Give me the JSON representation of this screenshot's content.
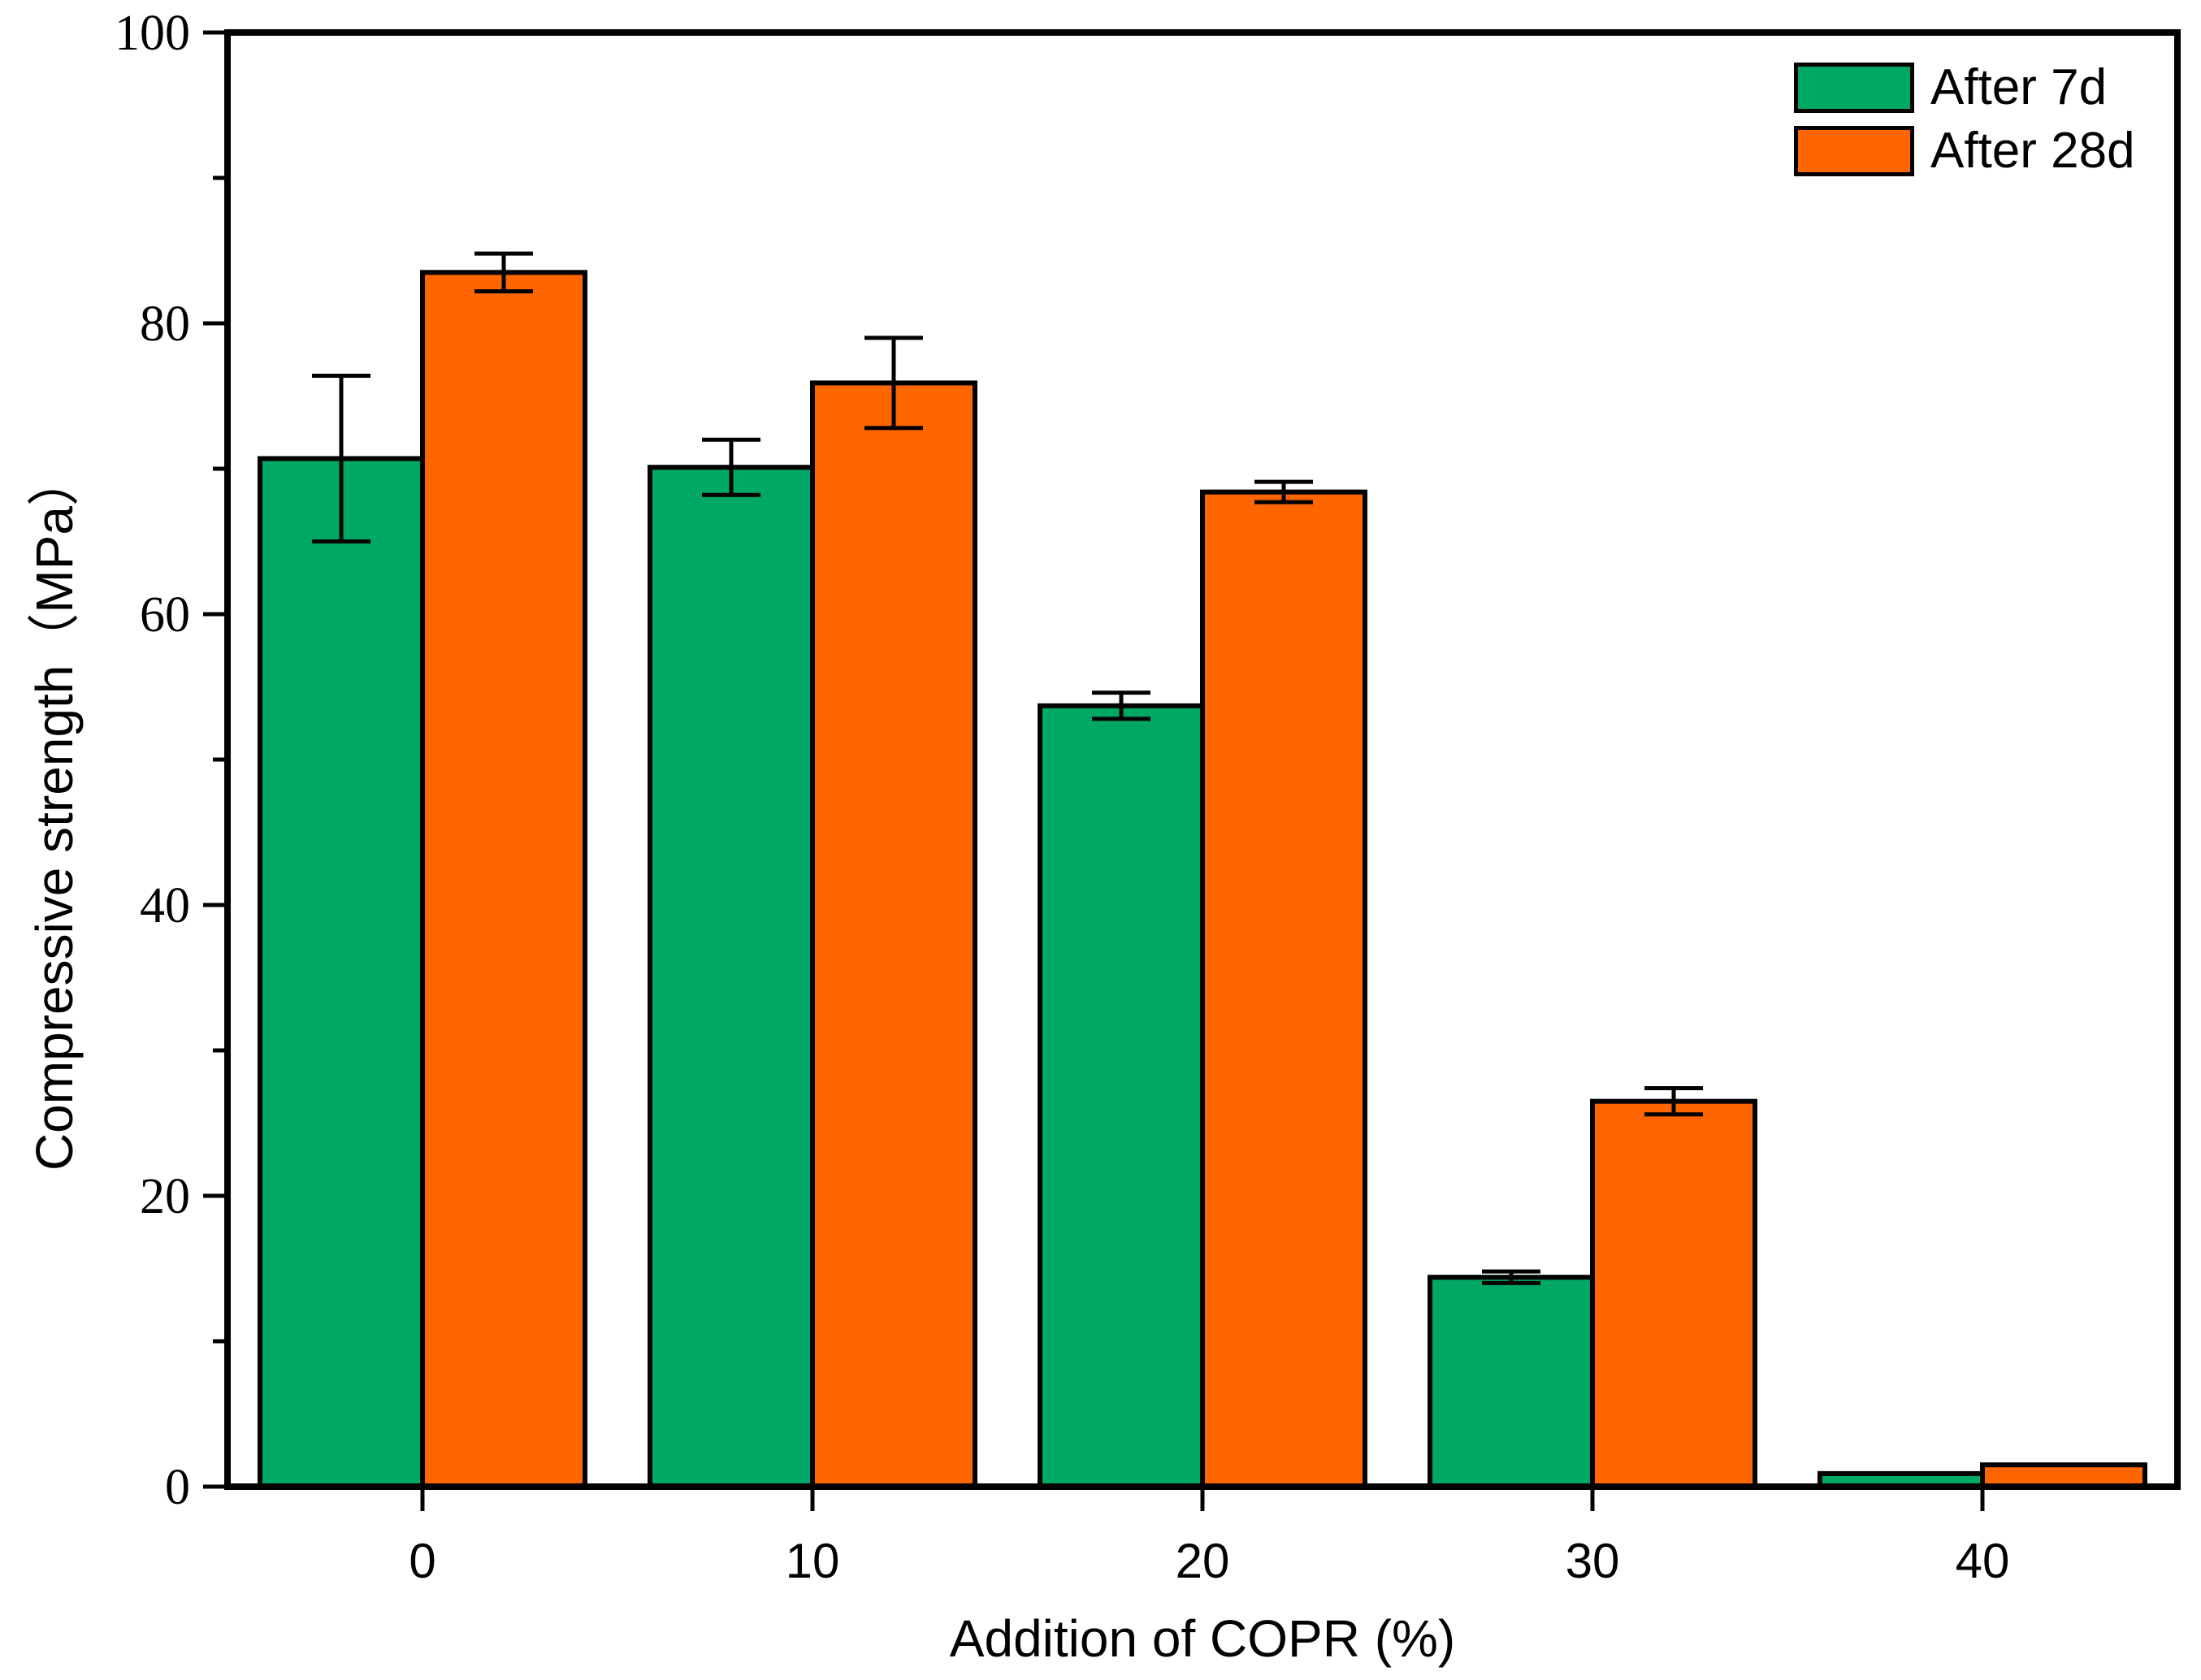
{
  "chart_data": {
    "type": "bar",
    "title": "",
    "xlabel": "Addition of COPR (%)",
    "ylabel": "Compressive strength（MPa）",
    "categories": [
      "0",
      "10",
      "20",
      "30",
      "40"
    ],
    "series": [
      {
        "name": "After 7d",
        "color": "#00A865",
        "values": [
          70.7,
          70.1,
          53.7,
          14.4,
          0.9
        ],
        "errors": [
          5.7,
          1.9,
          0.9,
          0.4,
          0
        ]
      },
      {
        "name": "After 28d",
        "color": "#FF6600",
        "values": [
          83.5,
          75.9,
          68.4,
          26.5,
          1.5
        ],
        "errors": [
          1.3,
          3.1,
          0.7,
          0.9,
          0
        ]
      }
    ],
    "ylim": [
      0,
      100
    ],
    "y_major_ticks": [
      0,
      20,
      40,
      60,
      80,
      100
    ],
    "y_minor_ticks": [
      10,
      30,
      50,
      70,
      90
    ],
    "grid": false,
    "legend_position": "top-right",
    "axis_color": "#000000",
    "bar_border_color": "#000000",
    "error_bar_color": "#000000"
  }
}
